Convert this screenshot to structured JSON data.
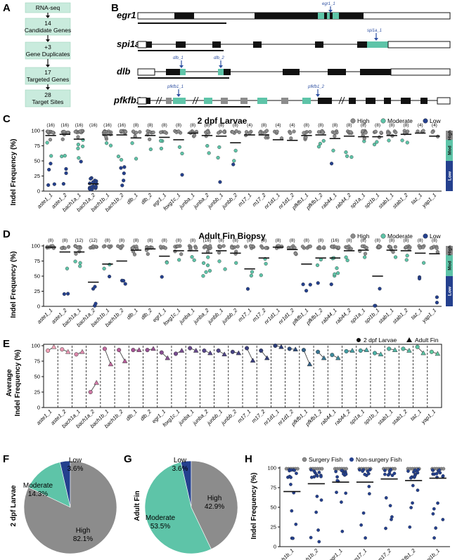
{
  "panels": {
    "A": "A",
    "B": "B",
    "C": "C",
    "D": "D",
    "E": "E",
    "F": "F",
    "G": "G",
    "H": "H"
  },
  "flowchart": [
    "RNA-seq",
    "14 Candidate Genes",
    "+3 Gene Duplicates",
    "17 Targeted Genes",
    "28 Target Sites"
  ],
  "genes": [
    {
      "name": "egr1",
      "sites": [
        "egr1_1"
      ]
    },
    {
      "name": "spi1a",
      "sites": [
        "spi1a_1"
      ]
    },
    {
      "name": "dlb",
      "sites": [
        "dlb_1",
        "dlb_2"
      ]
    },
    {
      "name": "pfkfb1",
      "sites": [
        "pfkfb1_1",
        "pfkfb1_2"
      ]
    }
  ],
  "legend": {
    "high": "High",
    "moderate": "Moderate",
    "low": "Low",
    "larvae": "2 dpf Larvae",
    "adult": "Adult Fin"
  },
  "colors": {
    "high": "#8c8c8c",
    "moderate": "#5ec4a8",
    "low": "#24408e",
    "larvae": "#f4a4b8",
    "adult": "#5fc9a0"
  },
  "class_bar": {
    "high": "High",
    "mod": "Mod",
    "low": "Low"
  },
  "sites": [
    "aste1_1",
    "aste1_2",
    "bach1a_1",
    "bach1a_2",
    "bach1b_1",
    "bach1b_2",
    "dlb_1",
    "dlb_2",
    "egr1_1",
    "foxg1c_1",
    "junba_1",
    "junba_2",
    "junbb_1",
    "junbb_2",
    "m17_1",
    "m17_2",
    "nr1d1_1",
    "nr1d1_2",
    "pfkfb1_1",
    "pfkfb1_2",
    "rab44_1",
    "rab44_2",
    "spi1a_1",
    "spi1b_1",
    "stab1_1",
    "stab1_2",
    "taz_1",
    "yap1_1"
  ],
  "panelC": {
    "title": "2 dpf Larvae",
    "ylabel": "Indel Frequency (%)",
    "counts": [
      "(16)",
      "(16)",
      "(16)",
      "(16)",
      "(16)",
      "(16)",
      "(8)",
      "(8)",
      "(8)",
      "(8)",
      "(8)",
      "(8)",
      "(8)",
      "(8)",
      "(4)",
      "(8)",
      "(4)",
      "(4)",
      "(8)",
      "(8)",
      "(8)",
      "(8)",
      "(8)",
      "(8)",
      "(8)",
      "(8)",
      "(4)",
      "(4)"
    ]
  },
  "panelD": {
    "title": "Adult Fin Biopsy",
    "ylabel": "Indel Frequency (%)",
    "counts": [
      "(8)",
      "(8)",
      "(12)",
      "(12)",
      "(8)",
      "(8)",
      "(8)",
      "(8)",
      "(8)",
      "(8)",
      "(8)",
      "(16)",
      "(8)",
      "(8)",
      "(8)",
      "(8)",
      "(8)",
      "(8)",
      "(8)",
      "(8)",
      "(16)",
      "(8)",
      "(8)",
      "(8)",
      "(8)",
      "(8)",
      "(8)",
      "(8)"
    ]
  },
  "panelE": {
    "ylabel": [
      "Average",
      "Indel Frequency (%)"
    ]
  },
  "panelF": {
    "ylabel": "2 dpf Larvae",
    "slices": [
      {
        "label": "High",
        "pct": "82.1%",
        "value": 82.1
      },
      {
        "label": "Moderate",
        "pct": "14.3%",
        "value": 14.3
      },
      {
        "label": "Low",
        "pct": "3.6%",
        "value": 3.6
      }
    ]
  },
  "panelG": {
    "ylabel": "Adult Fin",
    "slices": [
      {
        "label": "High",
        "pct": "42.9%",
        "value": 42.9
      },
      {
        "label": "Moderate",
        "pct": "53.5%",
        "value": 53.5
      },
      {
        "label": "Low",
        "pct": "3.6%",
        "value": 3.6
      }
    ]
  },
  "panelH": {
    "ylabel": "Indel Frequency (%)",
    "legend": [
      "Surgery Fish",
      "Non-surgery Fish"
    ],
    "sites": [
      "bach1b_1",
      "bach1b_2",
      "egr1_1",
      "m17_1",
      "m17_2",
      "pfkfb1_2",
      "spi1b_1"
    ],
    "means": [
      70,
      80,
      82,
      82,
      86,
      84,
      87
    ]
  },
  "chart_data": [
    {
      "type": "scatter",
      "title": "2 dpf Larvae",
      "ylabel": "Indel Frequency (%)",
      "ylim": [
        0,
        100
      ],
      "categories": [
        "aste1_1",
        "aste1_2",
        "bach1a_1",
        "bach1a_2",
        "bach1b_1",
        "bach1b_2",
        "dlb_1",
        "dlb_2",
        "egr1_1",
        "foxg1c_1",
        "junba_1",
        "junba_2",
        "junbb_1",
        "junbb_2",
        "m17_1",
        "m17_2",
        "nr1d1_1",
        "nr1d1_2",
        "pfkfb1_1",
        "pfkfb1_2",
        "rab44_1",
        "rab44_2",
        "spi1a_1",
        "spi1b_1",
        "stab1_1",
        "stab1_2",
        "taz_1",
        "yap1_1"
      ],
      "means": [
        92,
        94,
        86,
        12,
        93,
        93,
        88,
        92,
        89,
        85,
        96,
        92,
        91,
        80,
        93,
        93,
        85,
        84,
        92,
        93,
        87,
        91,
        90,
        90,
        92,
        94,
        96,
        91
      ]
    },
    {
      "type": "scatter",
      "title": "Adult Fin Biopsy",
      "ylabel": "Indel Frequency (%)",
      "ylim": [
        0,
        100
      ],
      "categories": [
        "aste1_1",
        "aste1_2",
        "bach1a_1",
        "bach1a_2",
        "bach1b_1",
        "bach1b_2",
        "dlb_1",
        "dlb_2",
        "egr1_1",
        "foxg1c_1",
        "junba_1",
        "junba_2",
        "junbb_1",
        "junbb_2",
        "m17_1",
        "m17_2",
        "nr1d1_1",
        "nr1d1_2",
        "pfkfb1_1",
        "pfkfb1_2",
        "rab44_1",
        "rab44_2",
        "spi1a_1",
        "spi1b_1",
        "stab1_1",
        "stab1_2",
        "taz_1",
        "yap1_1"
      ],
      "means": [
        98,
        90,
        90,
        40,
        70,
        75,
        93,
        95,
        83,
        92,
        92,
        88,
        92,
        88,
        62,
        80,
        98,
        94,
        70,
        80,
        80,
        92,
        93,
        50,
        93,
        92,
        88,
        87
      ]
    },
    {
      "type": "line",
      "ylabel": "Average Indel Frequency (%)",
      "ylim": [
        0,
        100
      ],
      "series": [
        {
          "name": "2 dpf Larvae",
          "values": [
            92,
            94,
            86,
            25,
            95,
            93,
            93,
            93,
            89,
            87,
            96,
            92,
            92,
            90,
            96,
            92,
            100,
            95,
            93,
            90,
            85,
            91,
            92,
            88,
            95,
            95,
            98,
            90
          ]
        },
        {
          "name": "Adult Fin",
          "values": [
            98,
            90,
            90,
            40,
            70,
            75,
            93,
            95,
            80,
            92,
            92,
            88,
            86,
            88,
            76,
            80,
            98,
            94,
            70,
            80,
            80,
            92,
            93,
            86,
            93,
            92,
            88,
            87
          ]
        }
      ]
    },
    {
      "type": "pie",
      "ylabel": "2 dpf Larvae",
      "categories": [
        "High",
        "Moderate",
        "Low"
      ],
      "values": [
        82.1,
        14.3,
        3.6
      ]
    },
    {
      "type": "pie",
      "ylabel": "Adult Fin",
      "categories": [
        "High",
        "Moderate",
        "Low"
      ],
      "values": [
        42.9,
        53.5,
        3.6
      ]
    },
    {
      "type": "scatter",
      "ylabel": "Indel Frequency (%)",
      "ylim": [
        0,
        100
      ],
      "categories": [
        "bach1b_1",
        "bach1b_2",
        "egr1_1",
        "m17_1",
        "m17_2",
        "pfkfb1_2",
        "spi1b_1"
      ],
      "series": [
        {
          "name": "Surgery Fish"
        },
        {
          "name": "Non-surgery Fish"
        }
      ],
      "means": [
        70,
        80,
        82,
        82,
        86,
        84,
        87
      ]
    }
  ]
}
